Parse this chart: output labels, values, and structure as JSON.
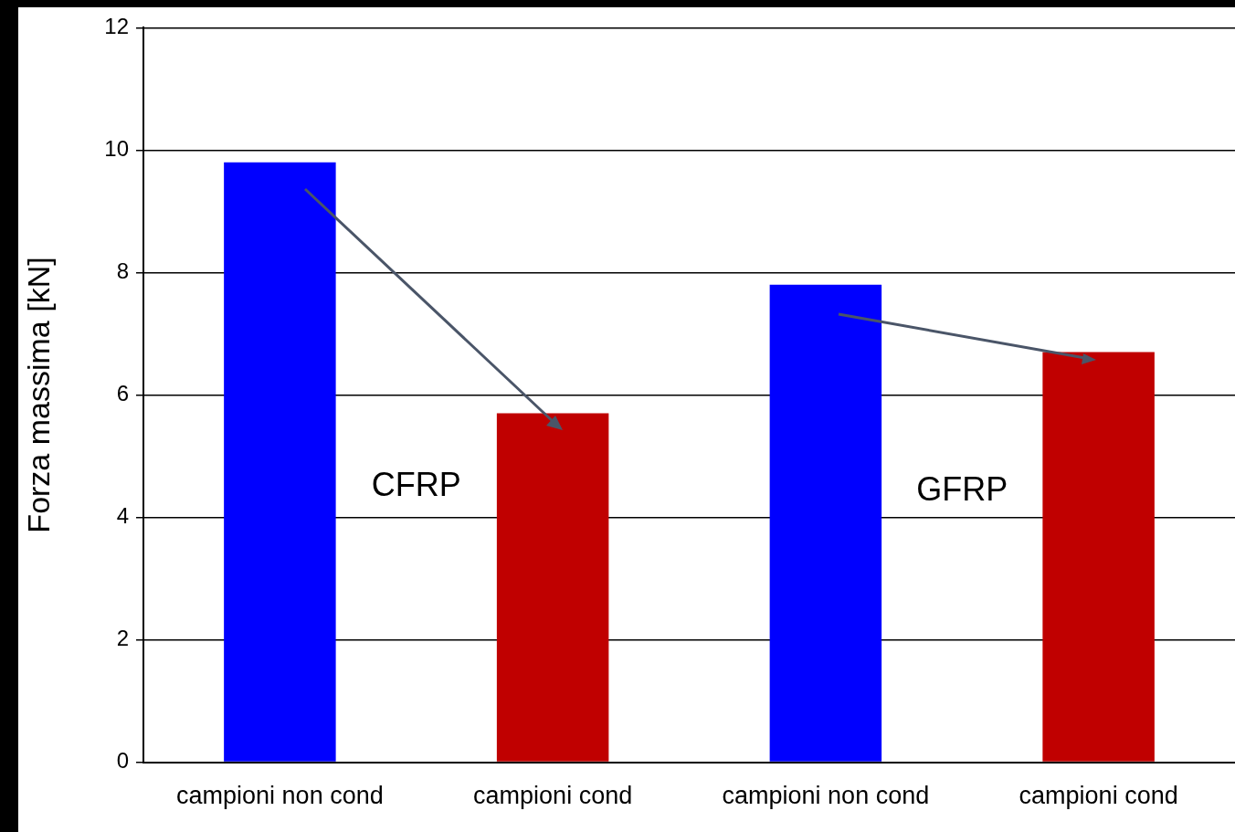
{
  "chart_data": {
    "type": "bar",
    "ylabel": "Forza massima [kN]",
    "categories": [
      "campioni non cond",
      "campioni cond",
      "campioni non cond",
      "campioni cond"
    ],
    "values": [
      9.8,
      5.7,
      7.8,
      6.7
    ],
    "colors": [
      "#0000ff",
      "#c00000",
      "#0000ff",
      "#c00000"
    ],
    "ylim": [
      0,
      12
    ],
    "yticks": [
      0,
      2,
      4,
      6,
      8,
      10,
      12
    ],
    "grid": "y",
    "legend": false,
    "annotations": [
      "CFRP",
      "GFRP"
    ]
  }
}
